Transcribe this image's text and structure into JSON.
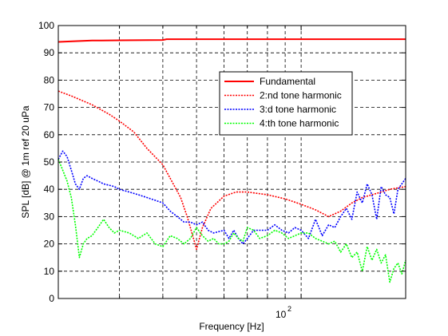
{
  "chart_data": {
    "type": "line",
    "xlabel": "Frequency [Hz]",
    "ylabel": "SPL [dB] @ 1m ref 20 uPa",
    "x_scale": "log",
    "xlim": [
      20,
      200
    ],
    "ylim": [
      0,
      100
    ],
    "y_ticks": [
      0,
      10,
      20,
      30,
      40,
      50,
      60,
      70,
      80,
      90,
      100
    ],
    "x_gridlines": [
      20,
      30,
      40,
      50,
      60,
      70,
      80,
      90,
      100,
      200
    ],
    "x_tick_label": {
      "base": "10",
      "exponent": "2"
    },
    "grid": true,
    "legend_position": "upper-right",
    "series": [
      {
        "name": "Fundamental",
        "color": "#ff0000",
        "dash": "solid",
        "x": [
          20,
          22,
          25,
          30,
          40,
          41,
          50,
          60,
          80,
          100,
          120,
          150,
          200
        ],
        "y": [
          94,
          94.2,
          94.5,
          94.6,
          94.7,
          95,
          95,
          95,
          95,
          95,
          95,
          95,
          95
        ]
      },
      {
        "name": "2:nd tone harmonic",
        "color": "#ff0000",
        "dash": "dotted",
        "x": [
          20,
          22,
          25,
          28,
          30,
          33,
          36,
          40,
          42,
          45,
          47,
          49,
          50,
          52,
          55,
          60,
          65,
          70,
          80,
          90,
          100,
          110,
          120,
          130,
          140,
          150,
          160,
          170,
          180,
          200
        ],
        "y": [
          76,
          74,
          71,
          67.5,
          65,
          61,
          55,
          49,
          44,
          37,
          30,
          22,
          18,
          26,
          33,
          37.5,
          39,
          39,
          38,
          36.5,
          34.5,
          32.5,
          30,
          32,
          35,
          37,
          38,
          39,
          40,
          41
        ]
      },
      {
        "name": "3:d tone harmonic",
        "color": "#0000ff",
        "dash": "dotted",
        "x": [
          20,
          20.6,
          21.2,
          21.8,
          22.4,
          23,
          23.6,
          24.2,
          25,
          26,
          27,
          28,
          29,
          30,
          32,
          34,
          36,
          38,
          40,
          42,
          44,
          46,
          48,
          50,
          52,
          54,
          56,
          58,
          60,
          62,
          64,
          66,
          68,
          70,
          73,
          76,
          80,
          84,
          88,
          92,
          96,
          100,
          105,
          110,
          115,
          120,
          125,
          130,
          135,
          140,
          145,
          150,
          155,
          160,
          165,
          170,
          175,
          180,
          185,
          190,
          195,
          200
        ],
        "y": [
          51,
          54,
          52,
          47,
          42,
          40,
          44,
          45,
          44,
          43,
          42,
          41.5,
          41,
          40,
          39,
          38,
          37,
          36,
          35,
          32,
          30,
          28,
          28,
          27,
          28,
          25,
          24,
          24.5,
          25,
          22,
          25,
          22,
          20,
          22,
          25,
          25,
          25,
          27,
          25,
          24,
          26,
          25,
          22,
          29,
          23,
          27,
          26,
          30,
          33,
          29,
          39,
          35,
          42,
          38,
          29,
          41,
          38,
          37,
          31,
          40,
          42,
          44
        ]
      },
      {
        "name": "4:th tone harmonic",
        "color": "#00ff00",
        "dash": "dotted",
        "x": [
          20,
          20.6,
          21.2,
          21.8,
          22.4,
          23,
          23.6,
          24.2,
          25,
          26,
          27,
          28,
          29,
          30,
          32,
          34,
          36,
          38,
          40,
          42,
          44,
          46,
          48,
          50,
          52,
          54,
          56,
          58,
          60,
          62,
          64,
          66,
          68,
          70,
          73,
          76,
          80,
          84,
          88,
          92,
          96,
          100,
          105,
          110,
          115,
          120,
          125,
          130,
          135,
          140,
          145,
          150,
          155,
          160,
          165,
          170,
          175,
          180,
          185,
          190,
          195,
          200
        ],
        "y": [
          51,
          47,
          43,
          37,
          27,
          15,
          20,
          22,
          23,
          26,
          29,
          26,
          24,
          25,
          24,
          22,
          24,
          20,
          19,
          23,
          22,
          20,
          22,
          26,
          23,
          21,
          22,
          20,
          20,
          21,
          24,
          22,
          21,
          26,
          25,
          22,
          23,
          25,
          24,
          22,
          23,
          24,
          24,
          22,
          21,
          20,
          21,
          17,
          20,
          15,
          17,
          10,
          19,
          14,
          18,
          13,
          16,
          6,
          11,
          13,
          9,
          14
        ]
      }
    ]
  }
}
